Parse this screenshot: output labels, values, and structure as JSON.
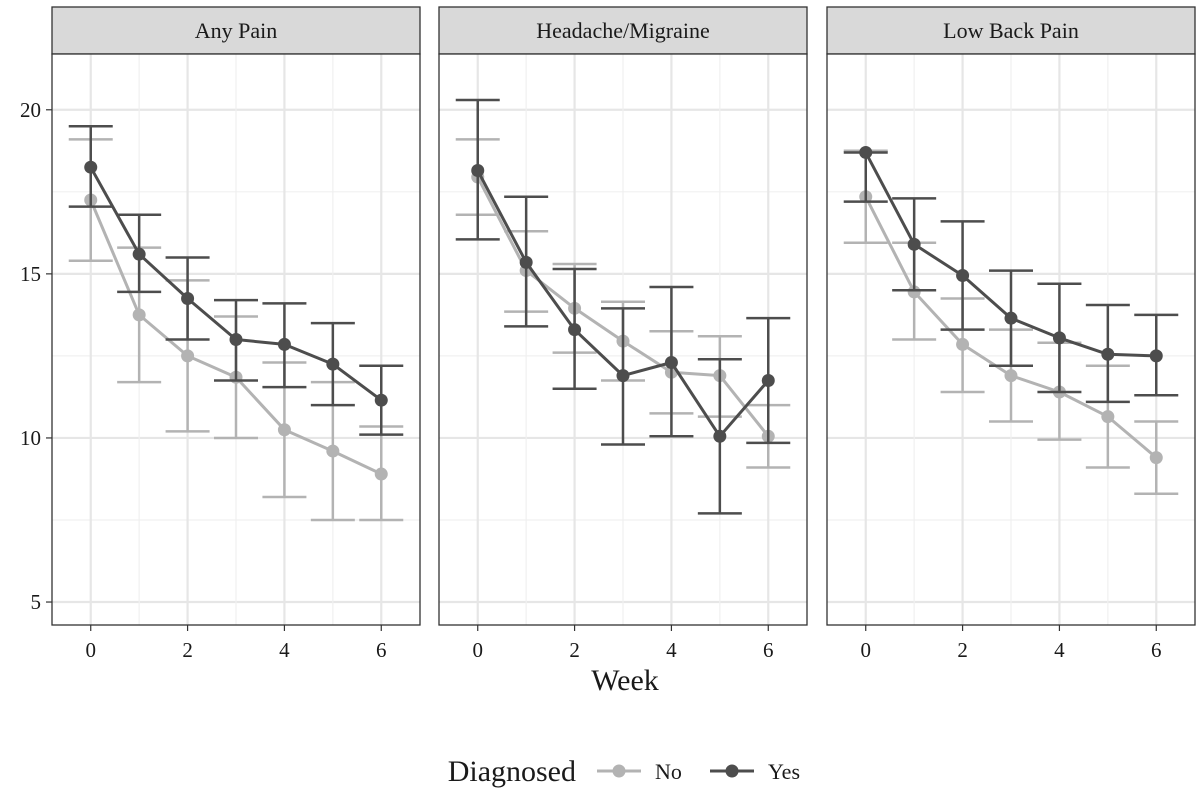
{
  "chart_data": {
    "type": "line",
    "xlabel": "Week",
    "ylabel": "",
    "xlim": [
      -0.8,
      6.8
    ],
    "ylim": [
      4.3,
      21.7
    ],
    "x_ticks": [
      0,
      2,
      4,
      6
    ],
    "y_ticks": [
      5,
      10,
      15,
      20
    ],
    "grid": true,
    "legend": {
      "title": "Diagnosed",
      "position": "bottom",
      "entries": [
        "No",
        "Yes"
      ]
    },
    "colors": {
      "No": "#b3b3b3",
      "Yes": "#4d4d4d"
    },
    "panels": [
      {
        "title": "Any Pain",
        "series": [
          {
            "name": "No",
            "x": [
              0,
              1,
              2,
              3,
              4,
              5,
              6
            ],
            "y": [
              17.25,
              13.75,
              12.5,
              11.85,
              10.25,
              9.6,
              8.9
            ],
            "lower": [
              15.4,
              11.7,
              10.2,
              10.0,
              8.2,
              7.5,
              7.5
            ],
            "upper": [
              19.1,
              15.8,
              14.8,
              13.7,
              12.3,
              11.7,
              10.35
            ]
          },
          {
            "name": "Yes",
            "x": [
              0,
              1,
              2,
              3,
              4,
              5,
              6
            ],
            "y": [
              18.25,
              15.6,
              14.25,
              13.0,
              12.85,
              12.25,
              11.15
            ],
            "lower": [
              17.05,
              14.45,
              13.0,
              11.75,
              11.55,
              11.0,
              10.1
            ],
            "upper": [
              19.5,
              16.8,
              15.5,
              14.2,
              14.1,
              13.5,
              12.2
            ]
          }
        ]
      },
      {
        "title": "Headache/Migraine",
        "series": [
          {
            "name": "No",
            "x": [
              0,
              1,
              2,
              3,
              4,
              5,
              6
            ],
            "y": [
              17.95,
              15.1,
              13.95,
              12.95,
              12.0,
              11.9,
              10.05
            ],
            "lower": [
              16.8,
              13.85,
              12.6,
              11.75,
              10.75,
              10.65,
              9.1
            ],
            "upper": [
              19.1,
              16.3,
              15.3,
              14.15,
              13.25,
              13.1,
              11.0
            ]
          },
          {
            "name": "Yes",
            "x": [
              0,
              1,
              2,
              3,
              4,
              5,
              6
            ],
            "y": [
              18.15,
              15.35,
              13.3,
              11.9,
              12.3,
              10.05,
              11.75
            ],
            "lower": [
              16.05,
              13.4,
              11.5,
              9.8,
              10.05,
              7.7,
              9.85
            ],
            "upper": [
              20.3,
              17.35,
              15.15,
              13.95,
              14.6,
              12.4,
              13.65
            ]
          }
        ]
      },
      {
        "title": "Low Back Pain",
        "series": [
          {
            "name": "No",
            "x": [
              0,
              1,
              2,
              3,
              4,
              5,
              6
            ],
            "y": [
              17.35,
              14.45,
              12.85,
              11.9,
              11.4,
              10.65,
              9.4
            ],
            "lower": [
              15.95,
              13.0,
              11.4,
              10.5,
              9.95,
              9.1,
              8.3
            ],
            "upper": [
              18.75,
              15.95,
              14.25,
              13.3,
              12.9,
              12.2,
              10.5
            ]
          },
          {
            "name": "Yes",
            "x": [
              0,
              1,
              2,
              3,
              4,
              5,
              6
            ],
            "y": [
              18.7,
              15.9,
              14.95,
              13.65,
              13.05,
              12.55,
              12.5
            ],
            "lower": [
              17.2,
              14.5,
              13.3,
              12.2,
              11.4,
              11.1,
              11.3
            ],
            "upper": [
              18.7,
              17.3,
              16.6,
              15.1,
              14.7,
              14.05,
              13.75
            ]
          }
        ]
      }
    ]
  }
}
